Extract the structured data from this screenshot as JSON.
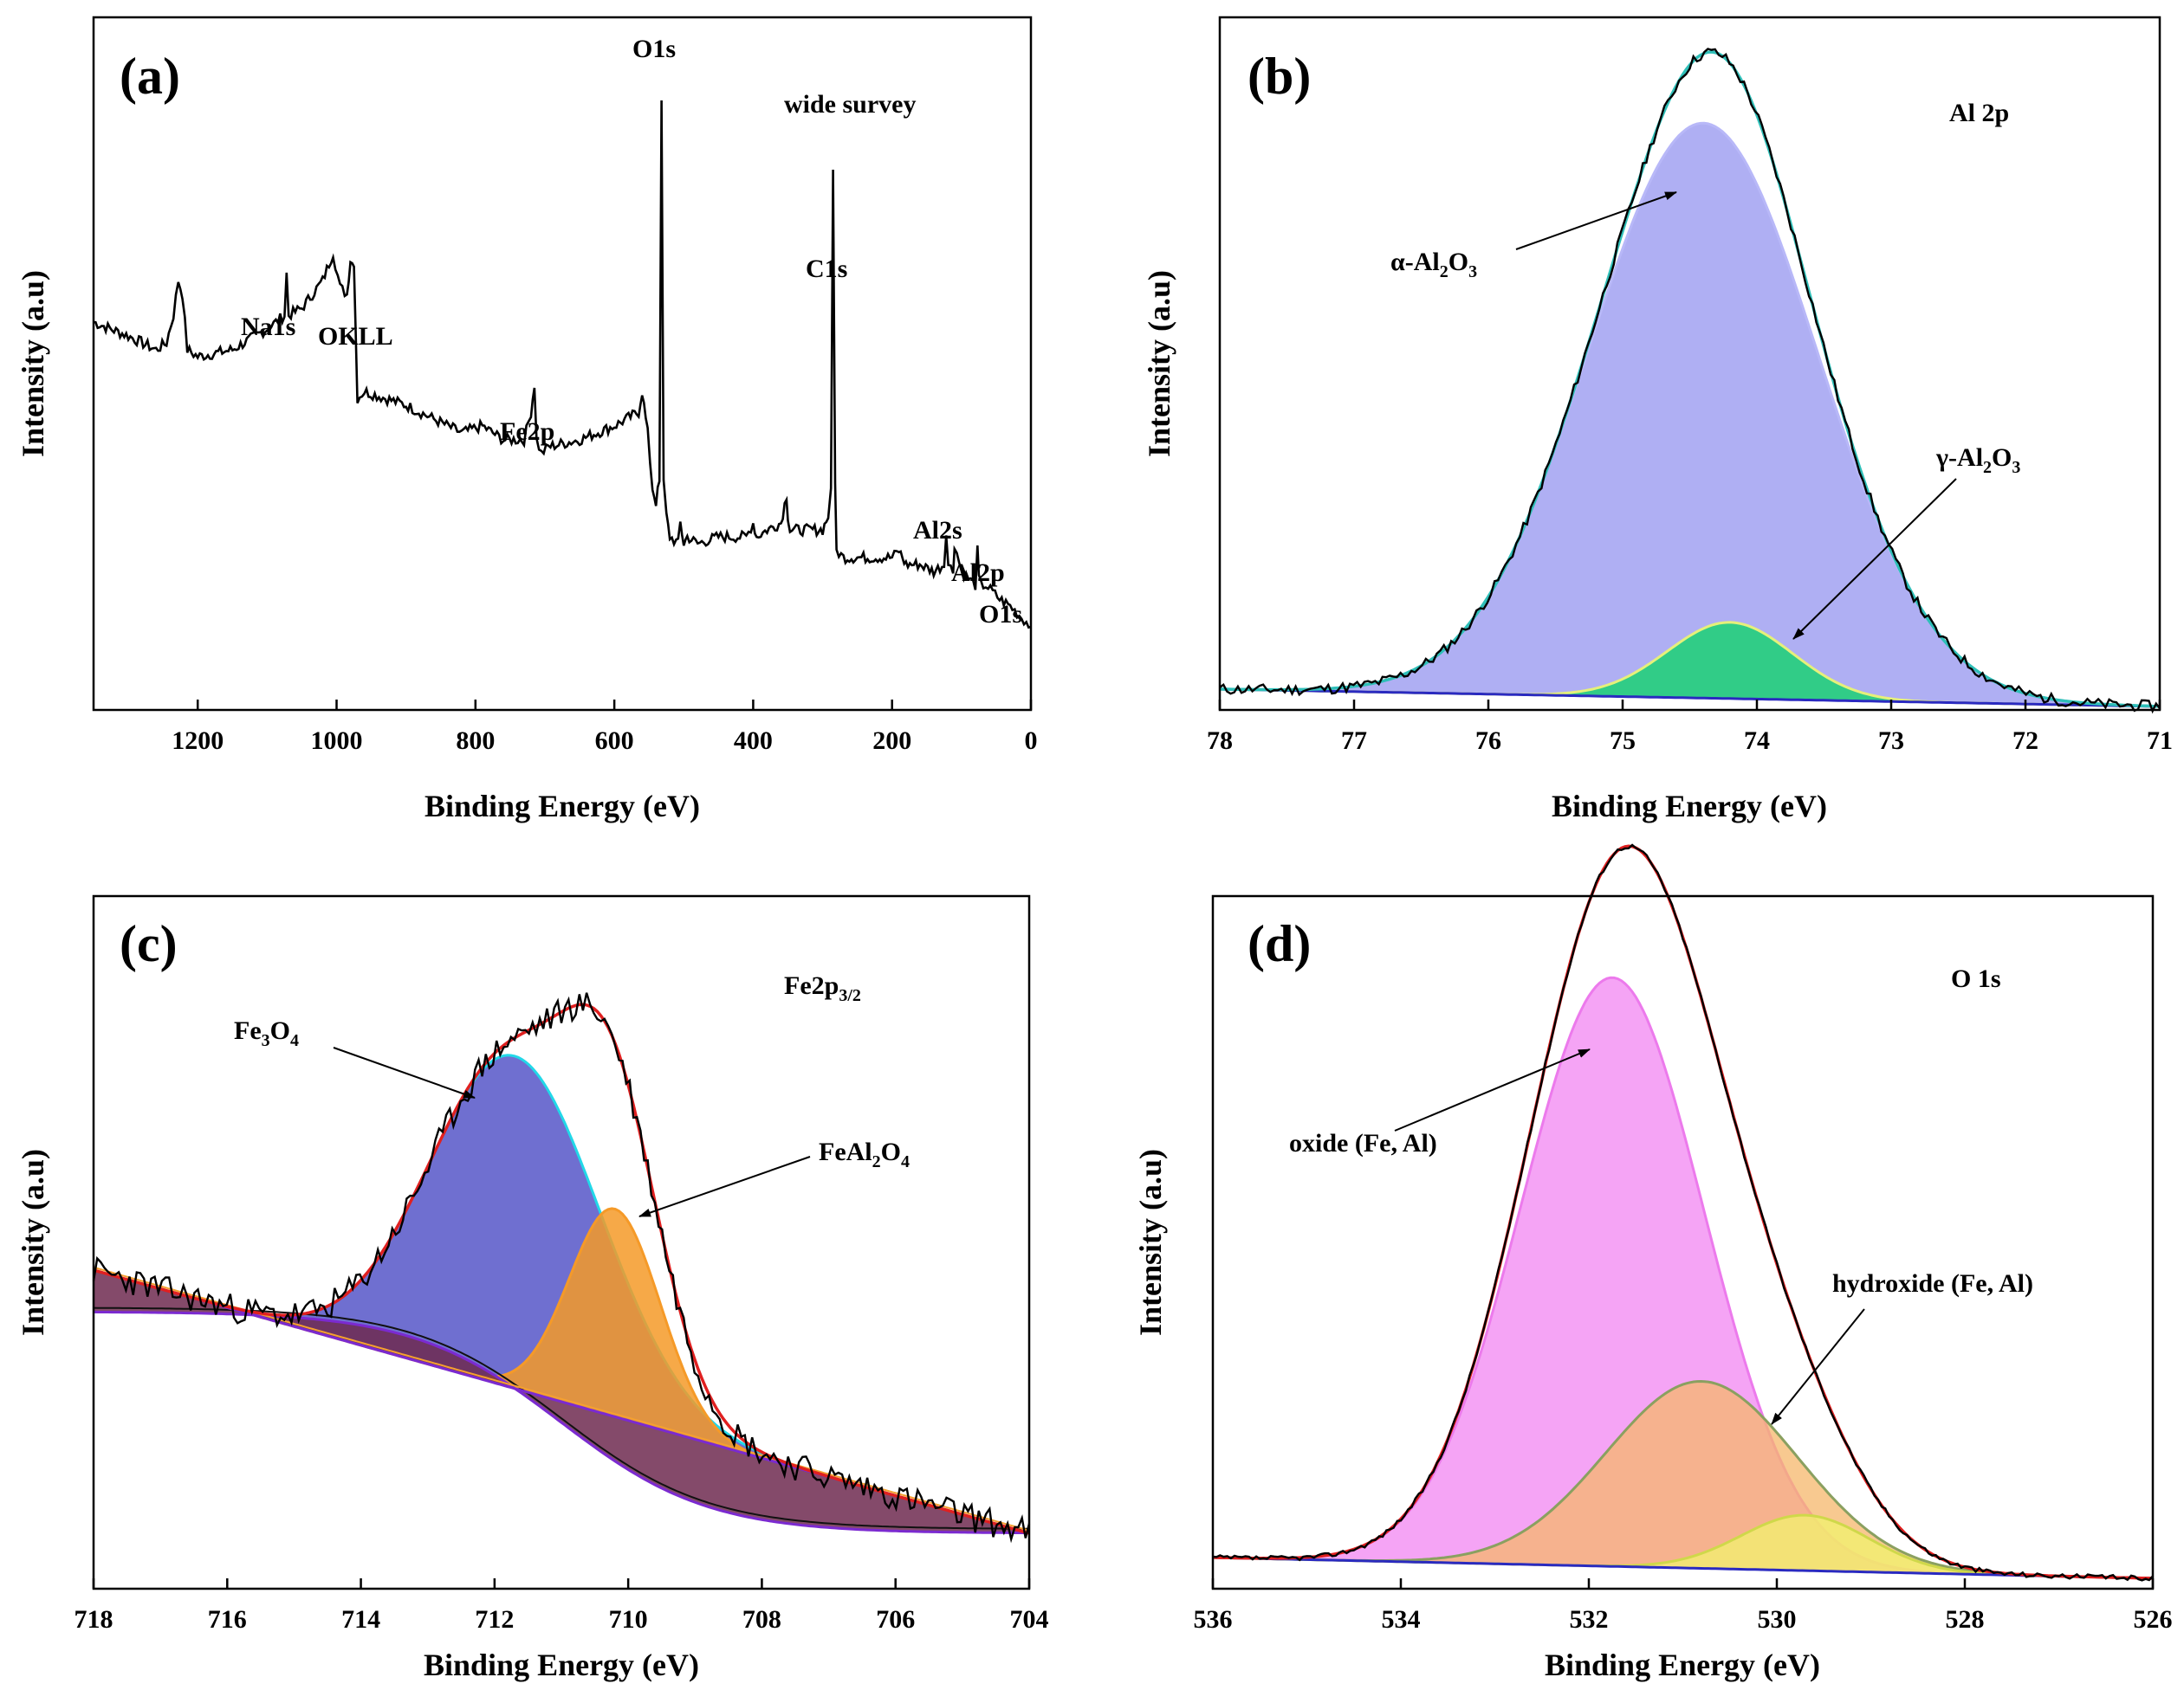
{
  "chart_data": [
    {
      "id": "a",
      "type": "line",
      "panel_label": "(a)",
      "title": "wide survey",
      "xlabel": "Binding Energy (eV)",
      "ylabel": "Intensity (a.u)",
      "xlim": [
        1350,
        0
      ],
      "ylim": [
        0,
        100
      ],
      "xticks": [
        1200,
        1000,
        800,
        600,
        400,
        200,
        0
      ],
      "series": [
        {
          "name": "survey",
          "color": "#000000",
          "x": [
            1350,
            1300,
            1260,
            1245,
            1235,
            1228,
            1222,
            1215,
            1200,
            1150,
            1100,
            1075,
            1072,
            1069,
            1050,
            1020,
            1005,
            995,
            985,
            980,
            975,
            970,
            960,
            900,
            860,
            820,
            790,
            760,
            730,
            720,
            715,
            712,
            705,
            695,
            650,
            600,
            565,
            560,
            552,
            545,
            540,
            535,
            532,
            529,
            525,
            520,
            508,
            505,
            500,
            495,
            480,
            450,
            410,
            400,
            395,
            380,
            360,
            352,
            350,
            347,
            320,
            300,
            292,
            288,
            285,
            282,
            280,
            270,
            250,
            200,
            190,
            185,
            180,
            160,
            140,
            125,
            122,
            119,
            112,
            110,
            100,
            90,
            80,
            77,
            75,
            72,
            65,
            55,
            45,
            30,
            20,
            10,
            0
          ],
          "y": [
            56,
            54,
            52,
            53,
            57,
            62,
            60,
            52,
            51,
            52,
            55,
            57,
            63,
            57,
            58,
            62,
            66,
            61,
            60,
            65,
            64,
            45,
            46,
            44,
            42,
            40,
            41,
            39,
            39,
            43,
            47,
            39,
            37,
            38,
            39,
            41,
            43,
            46,
            40,
            32,
            30,
            33,
            88,
            33,
            28,
            25,
            24,
            27,
            24,
            25,
            24,
            25,
            25,
            27,
            25,
            26,
            27,
            31,
            28,
            26,
            26,
            26,
            28,
            32,
            78,
            32,
            23,
            22,
            22,
            22,
            23,
            22,
            21,
            21,
            20,
            21,
            26,
            21,
            20,
            24,
            20,
            19,
            18,
            23,
            19,
            18,
            18,
            17,
            16,
            15,
            14,
            13,
            12
          ]
        }
      ],
      "annotations": [
        "O1s",
        "C1s",
        "Na1s",
        "OKLL",
        "Fe2p",
        "Al2s",
        "Al2p",
        "O1s"
      ]
    },
    {
      "id": "b",
      "type": "area",
      "panel_label": "(b)",
      "title": "Al 2p",
      "xlabel": "Binding Energy (eV)",
      "ylabel": "Intensity (a.u)",
      "xlim": [
        78,
        71
      ],
      "ylim": [
        0,
        100
      ],
      "xticks": [
        78,
        77,
        76,
        75,
        74,
        73,
        72,
        71
      ],
      "series": [
        {
          "name": "α-Al2O3",
          "peak": 74.4,
          "fwhm": 2.0,
          "height": 83,
          "fill": "#9b9bf0",
          "line": "#b8b8f8"
        },
        {
          "name": "γ-Al2O3",
          "peak": 74.2,
          "fwhm": 1.1,
          "height": 11,
          "fill": "#11d36b",
          "line": "#e6f07a"
        },
        {
          "name": "envelope",
          "color": "#2fbfb8"
        },
        {
          "name": "raw",
          "color": "#000000"
        },
        {
          "name": "background",
          "color": "#2a2ac0",
          "y_start": 3,
          "y_end": 0
        }
      ],
      "annotations": [
        "α-Al2O3",
        "γ-Al2O3"
      ]
    },
    {
      "id": "c",
      "type": "area",
      "panel_label": "(c)",
      "title": "Fe2p3/2",
      "xlabel": "Binding Energy (eV)",
      "ylabel": "Intensity (a.u)",
      "xlim": [
        718,
        704
      ],
      "ylim": [
        0,
        100
      ],
      "xticks": [
        718,
        716,
        714,
        712,
        710,
        708,
        706,
        704
      ],
      "series": [
        {
          "name": "Fe3O4",
          "peak": 711.7,
          "fwhm": 3.0,
          "height": 48,
          "fill": "#5656c8",
          "line": "#22d8e8"
        },
        {
          "name": "FeAl2O4",
          "peak": 710.2,
          "fwhm": 1.6,
          "height": 30,
          "fill": "#f59a28",
          "line": "#f59a28"
        },
        {
          "name": "shoulder",
          "fill": "#6e2a50"
        },
        {
          "name": "envelope",
          "color": "#e02020"
        },
        {
          "name": "raw",
          "color": "#000000"
        },
        {
          "name": "background",
          "color": "#7b2ad0"
        }
      ],
      "annotations": [
        "Fe3O4",
        "FeAl2O4"
      ]
    },
    {
      "id": "d",
      "type": "area",
      "panel_label": "(d)",
      "title": "O 1s",
      "xlabel": "Binding Energy (eV)",
      "ylabel": "Intensity (a.u)",
      "xlim": [
        536,
        526
      ],
      "ylim": [
        0,
        100
      ],
      "xticks": [
        536,
        534,
        532,
        530,
        528,
        526
      ],
      "series": [
        {
          "name": "oxide (Fe, Al)",
          "peak": 531.75,
          "fwhm": 2.3,
          "height": 85,
          "fill": "#f286f2",
          "line": "#ec7aec"
        },
        {
          "name": "hydroxide (Fe, Al)",
          "peak": 530.8,
          "fwhm": 2.4,
          "height": 27,
          "fill": "#f5b76b",
          "line": "#8aa060"
        },
        {
          "name": "extra",
          "peak": 529.7,
          "fwhm": 1.6,
          "height": 8,
          "fill": "#f2f26e",
          "line": "#cfd84a"
        },
        {
          "name": "envelope",
          "color": "#e02020"
        },
        {
          "name": "raw",
          "color": "#000000"
        },
        {
          "name": "background",
          "color": "#2a2ac0"
        }
      ],
      "annotations": [
        "oxide (Fe, Al)",
        "hydroxide (Fe, Al)"
      ]
    }
  ],
  "labels": {
    "a": {
      "title": "wide survey",
      "O1s_top": "O1s",
      "C1s": "C1s",
      "Na1s": "Na1s",
      "OKLL": "OKLL",
      "Fe2p": "Fe2p",
      "Al2s": "Al2s",
      "Al2p": "Al2p",
      "O1s_low": "O1s"
    },
    "b": {
      "title": "Al 2p",
      "alpha": "α-Al",
      "alpha_sub": "2",
      "alpha_mid": "O",
      "alpha_sub2": "3",
      "gamma": "γ-Al",
      "gamma_sub": "2",
      "gamma_mid": "O",
      "gamma_sub2": "3"
    },
    "c": {
      "title": "Fe2p",
      "title_sub": "3/2",
      "fe3o4_a": "Fe",
      "fe3o4_s1": "3",
      "fe3o4_b": "O",
      "fe3o4_s2": "4",
      "feal_a": "FeAl",
      "feal_s1": "2",
      "feal_b": "O",
      "feal_s2": "4"
    },
    "d": {
      "title": "O 1s",
      "oxide": "oxide (Fe, Al)",
      "hydroxide": "hydroxide (Fe, Al)"
    }
  }
}
